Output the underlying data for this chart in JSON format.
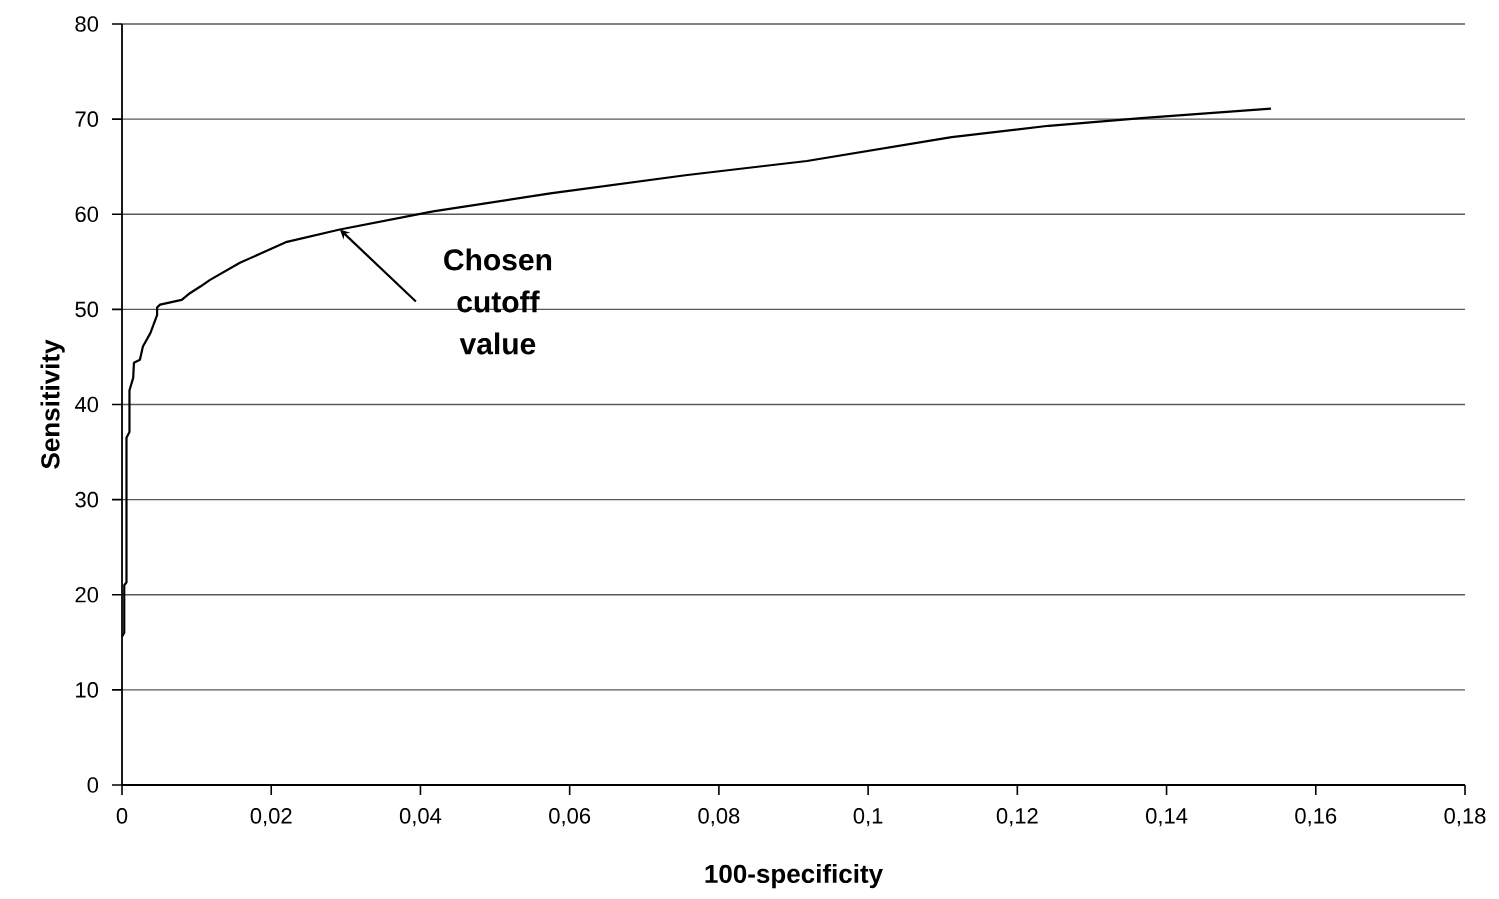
{
  "chart_data": {
    "type": "line",
    "xlabel": "100-specificity",
    "ylabel": "Sensitivity",
    "x": [
      0.0,
      0.0003,
      0.0003,
      0.0006,
      0.0006,
      0.001,
      0.001,
      0.0015,
      0.0016,
      0.0024,
      0.0028,
      0.0038,
      0.0047,
      0.0047,
      0.0051,
      0.008,
      0.0091,
      0.0105,
      0.0118,
      0.0158,
      0.0221,
      0.0292,
      0.0417,
      0.0574,
      0.0755,
      0.0918,
      0.1112,
      0.1242,
      0.1366,
      0.154
    ],
    "series": [
      {
        "color": "#000000",
        "values": [
          15.6,
          16.0,
          21.0,
          21.3,
          36.5,
          37.1,
          41.5,
          42.8,
          44.4,
          44.7,
          46.1,
          47.5,
          49.4,
          50.2,
          50.5,
          51.0,
          51.7,
          52.4,
          53.1,
          54.9,
          57.1,
          58.4,
          60.3,
          62.2,
          64.1,
          65.6,
          68.1,
          69.3,
          70.1,
          71.1
        ]
      }
    ],
    "xlim": [
      0,
      0.18
    ],
    "ylim": [
      0,
      80
    ],
    "xticks": [
      0,
      {
        "value": 0.02,
        "label": "0,02"
      },
      {
        "value": 0.04,
        "label": "0,04"
      },
      {
        "value": 0.06,
        "label": "0,06"
      },
      {
        "value": 0.08,
        "label": "0,08"
      },
      {
        "value": 0.1,
        "label": "0,1"
      },
      {
        "value": 0.12,
        "label": "0,12"
      },
      {
        "value": 0.14,
        "label": "0,14"
      },
      {
        "value": 0.16,
        "label": "0,16"
      },
      {
        "value": 0.18,
        "label": "0,18"
      }
    ],
    "yticks": [
      0,
      10,
      20,
      30,
      40,
      50,
      60,
      70,
      80
    ],
    "grid": "y",
    "marker": "none",
    "line_style": "solid",
    "annotations": [
      {
        "text": "Chosen cutoff value",
        "x": 0.0292,
        "y": 58.4
      }
    ]
  }
}
